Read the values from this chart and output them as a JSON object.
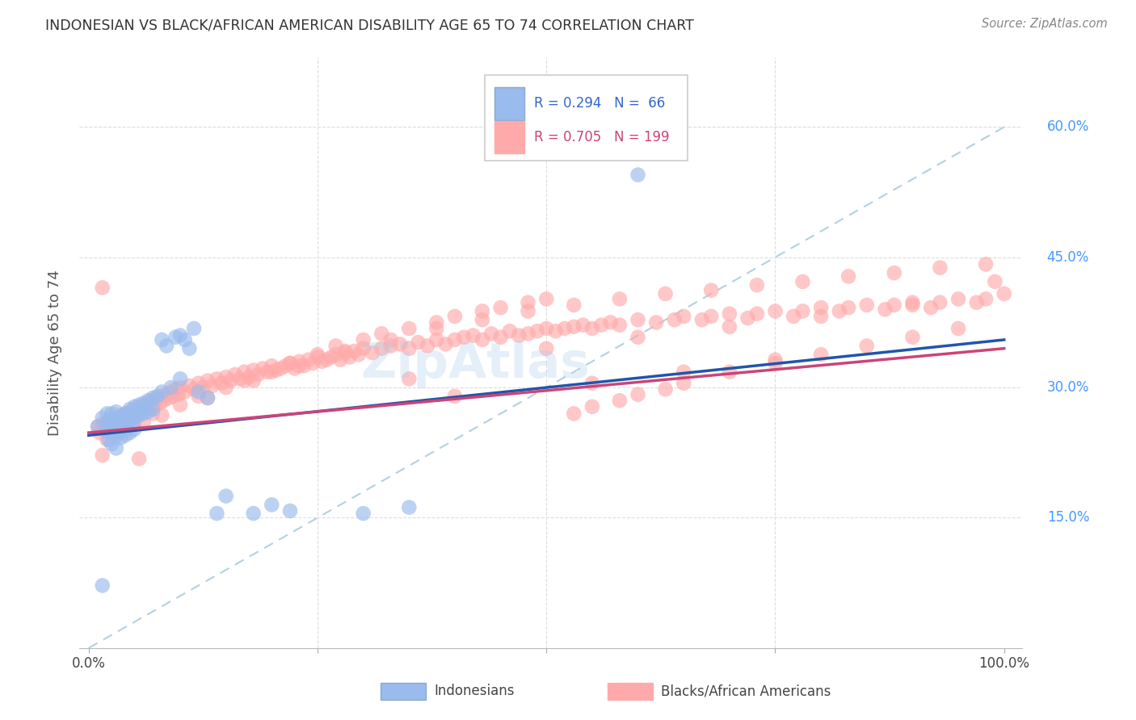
{
  "title": "INDONESIAN VS BLACK/AFRICAN AMERICAN DISABILITY AGE 65 TO 74 CORRELATION CHART",
  "source": "Source: ZipAtlas.com",
  "ylabel": "Disability Age 65 to 74",
  "blue_color": "#99BBEE",
  "pink_color": "#FFAAAA",
  "blue_line_color": "#2255AA",
  "pink_line_color": "#CC4477",
  "dashed_line_color": "#AACCDD",
  "R_blue": 0.294,
  "N_blue": 66,
  "R_pink": 0.705,
  "N_pink": 199,
  "watermark": "ZipAtlas",
  "background_color": "#FFFFFF",
  "grid_color": "#DDDDDD",
  "title_color": "#333333",
  "right_tick_color": "#4499FF",
  "legend_labels": [
    "Indonesians",
    "Blacks/African Americans"
  ],
  "blue_scatter_x": [
    0.01,
    0.015,
    0.02,
    0.02,
    0.02,
    0.022,
    0.022,
    0.025,
    0.025,
    0.025,
    0.025,
    0.027,
    0.03,
    0.03,
    0.03,
    0.03,
    0.032,
    0.033,
    0.035,
    0.035,
    0.035,
    0.037,
    0.038,
    0.04,
    0.04,
    0.04,
    0.042,
    0.045,
    0.045,
    0.045,
    0.047,
    0.05,
    0.05,
    0.05,
    0.052,
    0.055,
    0.055,
    0.057,
    0.06,
    0.06,
    0.065,
    0.065,
    0.07,
    0.07,
    0.075,
    0.08,
    0.08,
    0.085,
    0.09,
    0.095,
    0.1,
    0.1,
    0.105,
    0.11,
    0.115,
    0.12,
    0.13,
    0.14,
    0.15,
    0.18,
    0.2,
    0.22,
    0.3,
    0.35,
    0.015,
    0.6
  ],
  "blue_scatter_y": [
    0.255,
    0.265,
    0.255,
    0.27,
    0.25,
    0.262,
    0.24,
    0.27,
    0.255,
    0.248,
    0.235,
    0.26,
    0.272,
    0.255,
    0.245,
    0.23,
    0.262,
    0.25,
    0.265,
    0.252,
    0.242,
    0.258,
    0.268,
    0.27,
    0.255,
    0.245,
    0.26,
    0.275,
    0.262,
    0.248,
    0.268,
    0.278,
    0.265,
    0.252,
    0.27,
    0.28,
    0.268,
    0.272,
    0.282,
    0.27,
    0.285,
    0.272,
    0.288,
    0.275,
    0.29,
    0.355,
    0.295,
    0.348,
    0.3,
    0.358,
    0.36,
    0.31,
    0.355,
    0.345,
    0.368,
    0.295,
    0.288,
    0.155,
    0.175,
    0.155,
    0.165,
    0.158,
    0.155,
    0.162,
    0.072,
    0.545
  ],
  "pink_scatter_x": [
    0.01,
    0.012,
    0.015,
    0.018,
    0.02,
    0.022,
    0.025,
    0.028,
    0.03,
    0.032,
    0.035,
    0.038,
    0.04,
    0.042,
    0.045,
    0.048,
    0.05,
    0.052,
    0.055,
    0.058,
    0.06,
    0.062,
    0.065,
    0.068,
    0.07,
    0.072,
    0.075,
    0.078,
    0.08,
    0.082,
    0.085,
    0.088,
    0.09,
    0.092,
    0.095,
    0.098,
    0.1,
    0.105,
    0.11,
    0.115,
    0.12,
    0.125,
    0.13,
    0.135,
    0.14,
    0.145,
    0.15,
    0.155,
    0.16,
    0.165,
    0.17,
    0.175,
    0.18,
    0.185,
    0.19,
    0.195,
    0.2,
    0.205,
    0.21,
    0.215,
    0.22,
    0.225,
    0.23,
    0.235,
    0.24,
    0.245,
    0.25,
    0.255,
    0.26,
    0.265,
    0.27,
    0.275,
    0.28,
    0.285,
    0.29,
    0.295,
    0.3,
    0.31,
    0.32,
    0.33,
    0.34,
    0.35,
    0.36,
    0.37,
    0.38,
    0.39,
    0.4,
    0.41,
    0.42,
    0.43,
    0.44,
    0.45,
    0.46,
    0.47,
    0.48,
    0.49,
    0.5,
    0.51,
    0.52,
    0.53,
    0.54,
    0.55,
    0.56,
    0.57,
    0.58,
    0.6,
    0.62,
    0.64,
    0.65,
    0.67,
    0.68,
    0.7,
    0.72,
    0.73,
    0.75,
    0.77,
    0.78,
    0.8,
    0.82,
    0.83,
    0.85,
    0.87,
    0.88,
    0.9,
    0.92,
    0.93,
    0.95,
    0.97,
    0.98,
    1.0,
    0.03,
    0.05,
    0.07,
    0.1,
    0.12,
    0.15,
    0.17,
    0.2,
    0.22,
    0.25,
    0.27,
    0.3,
    0.32,
    0.35,
    0.38,
    0.4,
    0.43,
    0.45,
    0.48,
    0.5,
    0.53,
    0.55,
    0.58,
    0.6,
    0.63,
    0.65,
    0.7,
    0.75,
    0.8,
    0.85,
    0.9,
    0.95,
    0.02,
    0.04,
    0.06,
    0.08,
    0.13,
    0.18,
    0.23,
    0.28,
    0.33,
    0.38,
    0.43,
    0.48,
    0.53,
    0.58,
    0.63,
    0.68,
    0.73,
    0.78,
    0.83,
    0.88,
    0.93,
    0.98,
    0.015,
    0.035,
    0.055,
    0.015,
    0.35,
    0.99,
    0.5,
    0.6,
    0.7,
    0.8,
    0.9,
    0.4,
    0.55,
    0.65,
    0.75
  ],
  "pink_scatter_y": [
    0.255,
    0.248,
    0.258,
    0.252,
    0.26,
    0.255,
    0.262,
    0.258,
    0.265,
    0.26,
    0.268,
    0.262,
    0.27,
    0.265,
    0.272,
    0.268,
    0.275,
    0.27,
    0.278,
    0.272,
    0.28,
    0.275,
    0.282,
    0.278,
    0.285,
    0.28,
    0.288,
    0.282,
    0.29,
    0.285,
    0.292,
    0.288,
    0.295,
    0.29,
    0.298,
    0.292,
    0.3,
    0.295,
    0.302,
    0.298,
    0.305,
    0.3,
    0.308,
    0.302,
    0.31,
    0.305,
    0.312,
    0.308,
    0.315,
    0.31,
    0.318,
    0.312,
    0.32,
    0.315,
    0.322,
    0.318,
    0.325,
    0.32,
    0.322,
    0.325,
    0.328,
    0.322,
    0.33,
    0.325,
    0.332,
    0.328,
    0.335,
    0.33,
    0.332,
    0.335,
    0.338,
    0.332,
    0.34,
    0.335,
    0.342,
    0.338,
    0.345,
    0.34,
    0.345,
    0.348,
    0.35,
    0.345,
    0.352,
    0.348,
    0.355,
    0.35,
    0.355,
    0.358,
    0.36,
    0.355,
    0.362,
    0.358,
    0.365,
    0.36,
    0.362,
    0.365,
    0.368,
    0.365,
    0.368,
    0.37,
    0.372,
    0.368,
    0.372,
    0.375,
    0.372,
    0.378,
    0.375,
    0.378,
    0.382,
    0.378,
    0.382,
    0.385,
    0.38,
    0.385,
    0.388,
    0.382,
    0.388,
    0.392,
    0.388,
    0.392,
    0.395,
    0.39,
    0.395,
    0.398,
    0.392,
    0.398,
    0.402,
    0.398,
    0.402,
    0.408,
    0.248,
    0.26,
    0.27,
    0.28,
    0.29,
    0.3,
    0.308,
    0.318,
    0.328,
    0.338,
    0.348,
    0.355,
    0.362,
    0.368,
    0.375,
    0.382,
    0.388,
    0.392,
    0.398,
    0.402,
    0.27,
    0.278,
    0.285,
    0.292,
    0.298,
    0.305,
    0.318,
    0.328,
    0.338,
    0.348,
    0.358,
    0.368,
    0.24,
    0.252,
    0.26,
    0.268,
    0.288,
    0.308,
    0.325,
    0.342,
    0.355,
    0.368,
    0.378,
    0.388,
    0.395,
    0.402,
    0.408,
    0.412,
    0.418,
    0.422,
    0.428,
    0.432,
    0.438,
    0.442,
    0.222,
    0.248,
    0.218,
    0.415,
    0.31,
    0.422,
    0.345,
    0.358,
    0.37,
    0.382,
    0.395,
    0.29,
    0.305,
    0.318,
    0.332
  ]
}
